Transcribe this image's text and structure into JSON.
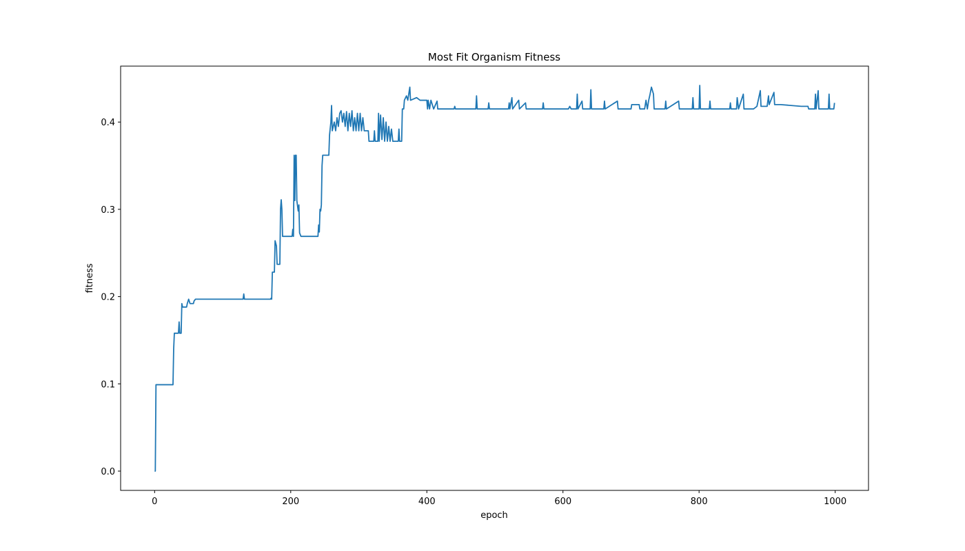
{
  "chart_data": {
    "type": "line",
    "title": "Most Fit Organism Fitness",
    "x_label": "epoch",
    "y_label": "fitness",
    "xlim": [
      -49.95,
      1048.95
    ],
    "ylim": [
      -0.0221,
      0.4641
    ],
    "xticks": [
      0,
      200,
      400,
      600,
      800,
      1000
    ],
    "yticks": [
      {
        "value": 0,
        "label": "0.0"
      },
      0.1,
      0.2,
      0.3,
      0.4
    ],
    "series": [
      {
        "color": "#1f77b4",
        "x": [
          0,
          1,
          2,
          27,
          28,
          29,
          35,
          36,
          37,
          39,
          40,
          41,
          47,
          48,
          50,
          52,
          57,
          58,
          60,
          130,
          131,
          132,
          170,
          171,
          172,
          173,
          176,
          177,
          179,
          180,
          184,
          185,
          186,
          187,
          188,
          202,
          203,
          204,
          205,
          206,
          207,
          208,
          209,
          211,
          212,
          213,
          215,
          240,
          241,
          242,
          243,
          244,
          245,
          246,
          247,
          256,
          257,
          259,
          260,
          261,
          264,
          266,
          268,
          270,
          272,
          274,
          276,
          278,
          280,
          282,
          284,
          286,
          288,
          290,
          292,
          294,
          296,
          298,
          300,
          302,
          304,
          306,
          308,
          310,
          314,
          315,
          322,
          323,
          324,
          328,
          329,
          330,
          332,
          334,
          336,
          338,
          340,
          342,
          344,
          346,
          348,
          350,
          358,
          359,
          360,
          363,
          364,
          366,
          367,
          370,
          372,
          375,
          376,
          385,
          390,
          400,
          401,
          402,
          404,
          406,
          410,
          415,
          416,
          440,
          441,
          442,
          472,
          473,
          474,
          490,
          491,
          492,
          520,
          521,
          522,
          525,
          526,
          535,
          536,
          545,
          546,
          570,
          571,
          572,
          608,
          610,
          612,
          620,
          621,
          622,
          628,
          629,
          640,
          641,
          642,
          660,
          661,
          662,
          680,
          681,
          700,
          701,
          712,
          713,
          720,
          722,
          724,
          726,
          728,
          730,
          733,
          734,
          750,
          751,
          752,
          770,
          771,
          790,
          791,
          792,
          800,
          801,
          802,
          815,
          816,
          817,
          845,
          846,
          847,
          855,
          856,
          858,
          865,
          866,
          880,
          885,
          890,
          891,
          900,
          902,
          903,
          910,
          911,
          920,
          950,
          960,
          961,
          970,
          971,
          972,
          975,
          976,
          990,
          991,
          992,
          998,
          999
        ],
        "values": [
          0,
          0,
          0.099,
          0.099,
          0.14,
          0.158,
          0.158,
          0.171,
          0.158,
          0.158,
          0.192,
          0.188,
          0.188,
          0.192,
          0.197,
          0.192,
          0.192,
          0.195,
          0.197,
          0.197,
          0.203,
          0.197,
          0.197,
          0.198,
          0.197,
          0.228,
          0.228,
          0.264,
          0.258,
          0.237,
          0.237,
          0.3,
          0.311,
          0.3,
          0.269,
          0.269,
          0.277,
          0.269,
          0.362,
          0.31,
          0.362,
          0.362,
          0.31,
          0.298,
          0.305,
          0.273,
          0.269,
          0.269,
          0.282,
          0.274,
          0.3,
          0.298,
          0.305,
          0.35,
          0.362,
          0.362,
          0.385,
          0.4,
          0.419,
          0.39,
          0.4,
          0.39,
          0.405,
          0.395,
          0.41,
          0.413,
          0.4,
          0.41,
          0.395,
          0.412,
          0.39,
          0.41,
          0.395,
          0.413,
          0.39,
          0.405,
          0.39,
          0.41,
          0.39,
          0.41,
          0.39,
          0.405,
          0.39,
          0.39,
          0.39,
          0.378,
          0.378,
          0.39,
          0.378,
          0.378,
          0.41,
          0.378,
          0.408,
          0.38,
          0.405,
          0.378,
          0.4,
          0.378,
          0.395,
          0.378,
          0.392,
          0.378,
          0.378,
          0.392,
          0.378,
          0.378,
          0.415,
          0.415,
          0.425,
          0.43,
          0.425,
          0.44,
          0.425,
          0.428,
          0.425,
          0.425,
          0.415,
          0.425,
          0.415,
          0.425,
          0.415,
          0.424,
          0.415,
          0.415,
          0.418,
          0.415,
          0.415,
          0.43,
          0.415,
          0.415,
          0.422,
          0.415,
          0.415,
          0.422,
          0.415,
          0.428,
          0.415,
          0.425,
          0.415,
          0.422,
          0.415,
          0.415,
          0.422,
          0.415,
          0.415,
          0.418,
          0.415,
          0.415,
          0.432,
          0.415,
          0.424,
          0.415,
          0.415,
          0.437,
          0.415,
          0.415,
          0.424,
          0.415,
          0.424,
          0.415,
          0.415,
          0.42,
          0.42,
          0.415,
          0.415,
          0.425,
          0.415,
          0.425,
          0.432,
          0.44,
          0.432,
          0.415,
          0.415,
          0.424,
          0.415,
          0.424,
          0.415,
          0.415,
          0.428,
          0.415,
          0.415,
          0.442,
          0.415,
          0.415,
          0.424,
          0.415,
          0.415,
          0.422,
          0.415,
          0.415,
          0.428,
          0.415,
          0.432,
          0.415,
          0.415,
          0.418,
          0.436,
          0.418,
          0.418,
          0.43,
          0.42,
          0.434,
          0.42,
          0.42,
          0.418,
          0.418,
          0.415,
          0.415,
          0.432,
          0.415,
          0.436,
          0.415,
          0.415,
          0.432,
          0.415,
          0.415,
          0.422
        ]
      }
    ]
  }
}
